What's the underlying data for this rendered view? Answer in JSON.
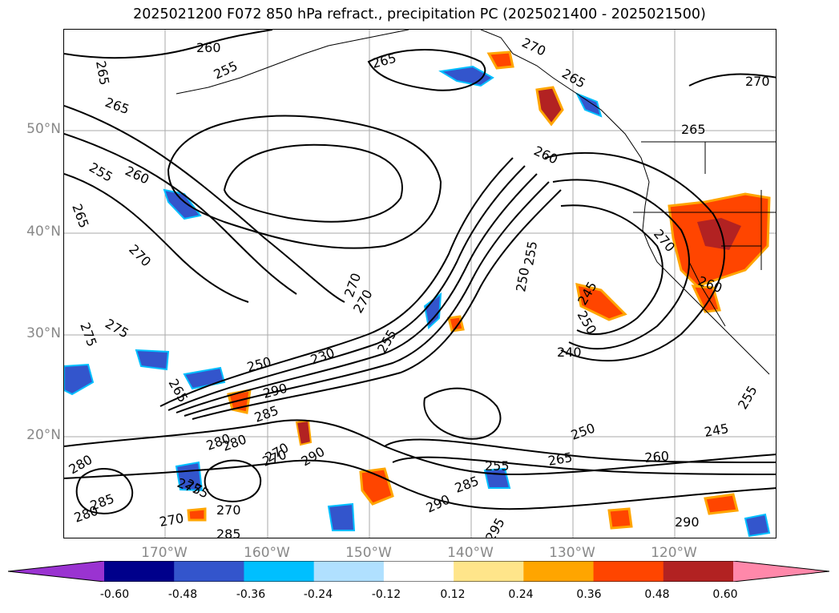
{
  "title": "2025021200 F072 850 hPa refract., precipitation PC (2025021400 - 2025021500)",
  "map": {
    "lat_labels": [
      "50°N",
      "40°N",
      "30°N",
      "20°N"
    ],
    "lon_labels": [
      "170°W",
      "160°W",
      "150°W",
      "140°W",
      "130°W",
      "120°W"
    ],
    "contour_labels": [
      "265",
      "260",
      "255",
      "265",
      "265",
      "270",
      "265",
      "260",
      "255",
      "265",
      "270",
      "260",
      "255",
      "270",
      "275",
      "275",
      "265",
      "250",
      "230",
      "290",
      "285",
      "280",
      "270",
      "280",
      "275",
      "285",
      "280",
      "270",
      "285",
      "270",
      "290",
      "280",
      "275",
      "270",
      "255",
      "250",
      "245",
      "240",
      "255",
      "290",
      "285",
      "265",
      "250",
      "245",
      "260",
      "290",
      "295",
      "270",
      "255",
      "260",
      "270",
      "250",
      "265",
      "270"
    ]
  },
  "colorbar": {
    "ticks": [
      "-0.60",
      "-0.48",
      "-0.36",
      "-0.24",
      "-0.12",
      "0.12",
      "0.24",
      "0.36",
      "0.48",
      "0.60"
    ],
    "colors": [
      "#9a33d1",
      "#00008b",
      "#3355cc",
      "#00bfff",
      "#b0e0ff",
      "#ffffff",
      "#ffe58a",
      "#ffa500",
      "#ff4500",
      "#b22222",
      "#ff88aa"
    ]
  }
}
